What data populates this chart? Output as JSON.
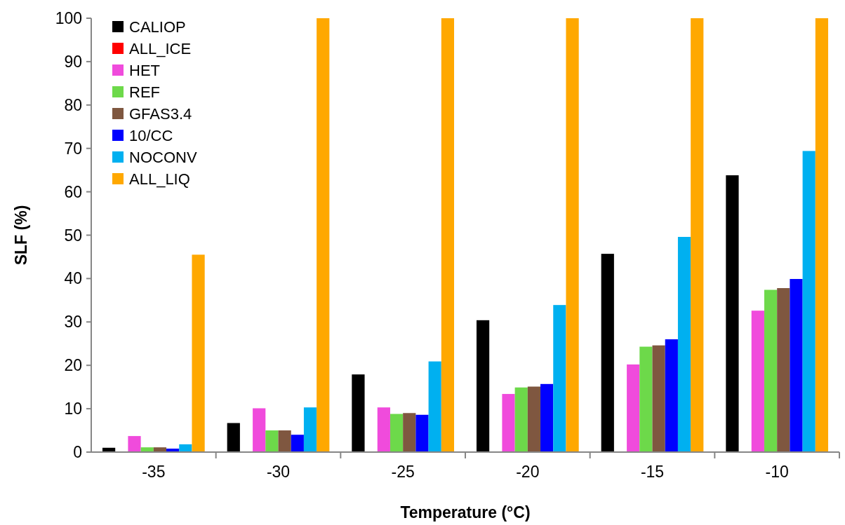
{
  "chart_data": {
    "type": "bar",
    "xlabel": "Temperature (°C)",
    "ylabel": "SLF (%)",
    "categories": [
      "-35",
      "-30",
      "-25",
      "-20",
      "-15",
      "-10"
    ],
    "series": [
      {
        "name": "CALIOP",
        "color": "#000000",
        "values": [
          1.0,
          6.7,
          17.9,
          30.4,
          45.7,
          63.8
        ]
      },
      {
        "name": "ALL_ICE",
        "color": "#ff0000",
        "values": [
          0,
          0,
          0,
          0,
          0,
          0
        ]
      },
      {
        "name": "HET",
        "color": "#f04bdc",
        "values": [
          3.7,
          10.1,
          10.3,
          13.4,
          20.2,
          32.6
        ]
      },
      {
        "name": "REF",
        "color": "#6dd94a",
        "values": [
          1.1,
          5.0,
          8.8,
          14.9,
          24.3,
          37.4
        ]
      },
      {
        "name": "GFAS3.4",
        "color": "#7f5740",
        "values": [
          1.1,
          5.0,
          9.0,
          15.1,
          24.6,
          37.8
        ]
      },
      {
        "name": "10/CC",
        "color": "#0000ff",
        "values": [
          0.8,
          4.0,
          8.6,
          15.7,
          26.0,
          39.9
        ]
      },
      {
        "name": "NOCONV",
        "color": "#00b0f0",
        "values": [
          1.8,
          10.3,
          20.9,
          33.9,
          49.6,
          69.4
        ]
      },
      {
        "name": "ALL_LIQ",
        "color": "#ffa800",
        "values": [
          45.5,
          100,
          100,
          100,
          100,
          100
        ]
      }
    ],
    "ylim": [
      0,
      100
    ],
    "yticks": [
      0,
      10,
      20,
      30,
      40,
      50,
      60,
      70,
      80,
      90,
      100
    ],
    "legend": "top left"
  }
}
